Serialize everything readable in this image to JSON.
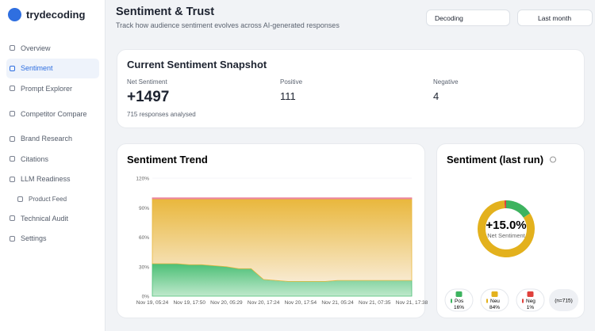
{
  "brand": "trydecoding",
  "nav": [
    "Overview",
    "Sentiment",
    "Prompt Explorer",
    "Competitor Compare",
    "Brand Research",
    "Citations",
    "LLM Readiness",
    "Product Feed",
    "Technical Audit",
    "Settings"
  ],
  "header": {
    "title": "Sentiment & Trust",
    "subtitle": "Track how audience sentiment evolves across AI-generated responses",
    "filters": [
      "Decoding",
      "Last month"
    ]
  },
  "snapshot": {
    "title": "Current Sentiment Snapshot",
    "metrics": [
      {
        "label": "Net Sentiment",
        "value": "+1497",
        "note": "715 responses analysed"
      },
      {
        "label": "Positive",
        "value": 111
      },
      {
        "label": "Negative",
        "value": 4
      }
    ]
  },
  "chart_data": [
    {
      "type": "area",
      "title": "Sentiment Trend",
      "stacked": true,
      "categories": [
        "Nov 19, 05:24",
        null,
        null,
        "Nov 19, 17:50",
        null,
        null,
        "Nov 20, 05:29",
        null,
        null,
        "Nov 20, 17:24",
        null,
        null,
        "Nov 20, 17:54",
        null,
        null,
        "Nov 21, 05:24",
        null,
        null,
        "Nov 21, 07:35",
        null,
        null,
        "Nov 21, 17:38"
      ],
      "ylim": [
        0,
        120
      ],
      "yticks": [
        {
          "value": 0,
          "label": "0%"
        },
        {
          "value": 30,
          "label": "30%"
        },
        {
          "value": 60,
          "label": "60%"
        },
        {
          "value": 90,
          "label": "90%"
        },
        {
          "value": 120,
          "label": "120%"
        }
      ],
      "series": [
        {
          "name": "Positive",
          "color": "#4cbf76",
          "values": [
            33,
            33,
            33,
            32,
            32,
            31,
            30,
            28,
            28,
            17,
            16,
            15,
            15,
            15,
            15,
            16,
            16,
            16,
            16,
            16,
            16,
            16
          ]
        },
        {
          "name": "Neutral",
          "color": "#e9b73c",
          "values": [
            66,
            66,
            66,
            67,
            67,
            68,
            69,
            71,
            71,
            82,
            83,
            84,
            84,
            84,
            84,
            83,
            83,
            83,
            83,
            83,
            83,
            83
          ]
        },
        {
          "name": "Negative",
          "color": "#ec7f98",
          "values": [
            1,
            1,
            1,
            1,
            1,
            1,
            1,
            1,
            1,
            1,
            1,
            1,
            1,
            1,
            1,
            1,
            1,
            1,
            1,
            1,
            1,
            1
          ]
        }
      ]
    },
    {
      "type": "donut",
      "title": "Sentiment (last run)",
      "center_label": "+15.0%",
      "center_sublabel": "Net Sentiment",
      "categories": [
        "Pos",
        "Neu",
        "Neg"
      ],
      "values": [
        16,
        84,
        1
      ],
      "value_labels": [
        "16%",
        "84%",
        "1%"
      ],
      "colors": [
        "#3db35f",
        "#e3b11d",
        "#e0413c"
      ],
      "note": "(n=715)"
    }
  ]
}
